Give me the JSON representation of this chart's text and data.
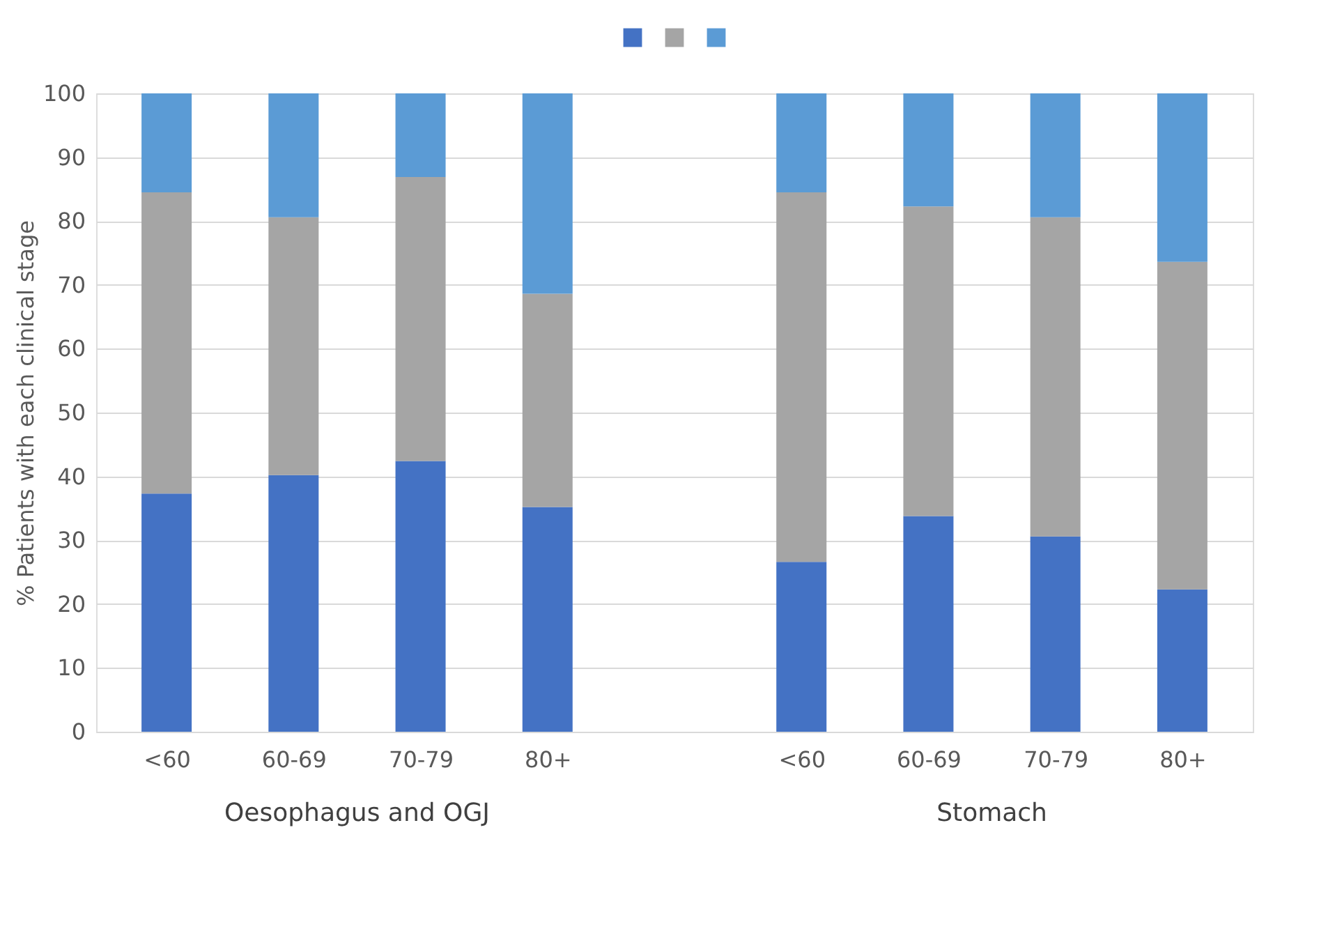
{
  "chart_data": {
    "type": "bar",
    "stacked": true,
    "ylabel": "% Patients with each clinical stage",
    "categories": [
      "<60",
      "60-69",
      "70-79",
      "80+",
      null,
      "<60",
      "60-69",
      "70-79",
      "80+"
    ],
    "series": [
      {
        "color": "#4472c4",
        "values": [
          37.3,
          40.2,
          42.4,
          35.2,
          null,
          26.6,
          33.8,
          30.6,
          22.3
        ]
      },
      {
        "color": "#a5a5a5",
        "values": [
          47.2,
          40.4,
          44.5,
          33.4,
          null,
          57.9,
          48.5,
          50.0,
          51.3
        ]
      },
      {
        "color": "#5b9bd5",
        "values": [
          15.5,
          19.4,
          13.1,
          31.4,
          null,
          15.5,
          17.7,
          19.4,
          26.4
        ]
      }
    ],
    "annotations": [
      "Oesophagus and OGJ",
      "Stomach"
    ],
    "ylim": [
      0,
      100
    ],
    "yticks": [
      0,
      10,
      20,
      30,
      40,
      50,
      60,
      70,
      80,
      90,
      100
    ],
    "grid": "y"
  }
}
